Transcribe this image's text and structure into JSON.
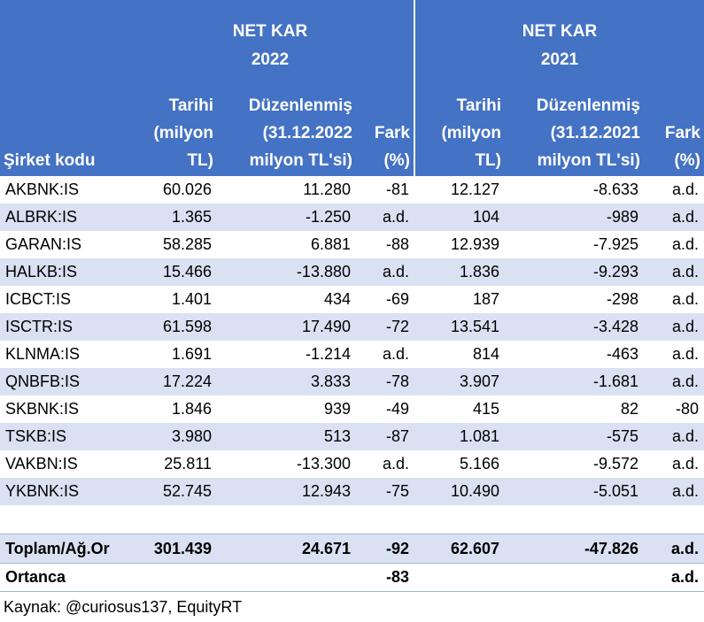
{
  "header": {
    "group_2022": {
      "line1": "NET KAR",
      "line2": "2022"
    },
    "group_2021": {
      "line1": "NET KAR",
      "line2": "2021"
    },
    "col_company": "Şirket kodu",
    "col_hist_1": "Tarihi",
    "col_hist_2": "(milyon",
    "col_hist_3": "TL)",
    "col_adj2022_1": "Düzenlenmiş",
    "col_adj2022_2": "(31.12.2022",
    "col_adj2022_3": "milyon TL'si)",
    "col_adj2021_1": "Düzenlenmiş",
    "col_adj2021_2": "(31.12.2021",
    "col_adj2021_3": "milyon TL'si)",
    "col_diff_1": "Fark",
    "col_diff_2": "(%)"
  },
  "rows": [
    {
      "code": "AKBNK:IS",
      "h22": "60.026",
      "a22": "11.280",
      "d22": "-81",
      "h21": "12.127",
      "a21": "-8.633",
      "d21": "a.d."
    },
    {
      "code": "ALBRK:IS",
      "h22": "1.365",
      "a22": "-1.250",
      "d22": "a.d.",
      "h21": "104",
      "a21": "-989",
      "d21": "a.d."
    },
    {
      "code": "GARAN:IS",
      "h22": "58.285",
      "a22": "6.881",
      "d22": "-88",
      "h21": "12.939",
      "a21": "-7.925",
      "d21": "a.d."
    },
    {
      "code": "HALKB:IS",
      "h22": "15.466",
      "a22": "-13.880",
      "d22": "a.d.",
      "h21": "1.836",
      "a21": "-9.293",
      "d21": "a.d."
    },
    {
      "code": "ICBCT:IS",
      "h22": "1.401",
      "a22": "434",
      "d22": "-69",
      "h21": "187",
      "a21": "-298",
      "d21": "a.d."
    },
    {
      "code": "ISCTR:IS",
      "h22": "61.598",
      "a22": "17.490",
      "d22": "-72",
      "h21": "13.541",
      "a21": "-3.428",
      "d21": "a.d."
    },
    {
      "code": "KLNMA:IS",
      "h22": "1.691",
      "a22": "-1.214",
      "d22": "a.d.",
      "h21": "814",
      "a21": "-463",
      "d21": "a.d."
    },
    {
      "code": "QNBFB:IS",
      "h22": "17.224",
      "a22": "3.833",
      "d22": "-78",
      "h21": "3.907",
      "a21": "-1.681",
      "d21": "a.d."
    },
    {
      "code": "SKBNK:IS",
      "h22": "1.846",
      "a22": "939",
      "d22": "-49",
      "h21": "415",
      "a21": "82",
      "d21": "-80"
    },
    {
      "code": "TSKB:IS",
      "h22": "3.980",
      "a22": "513",
      "d22": "-87",
      "h21": "1.081",
      "a21": "-575",
      "d21": "a.d."
    },
    {
      "code": "VAKBN:IS",
      "h22": "25.811",
      "a22": "-13.300",
      "d22": "a.d.",
      "h21": "5.166",
      "a21": "-9.572",
      "d21": "a.d."
    },
    {
      "code": "YKBNK:IS",
      "h22": "52.745",
      "a22": "12.943",
      "d22": "-75",
      "h21": "10.490",
      "a21": "-5.051",
      "d21": "a.d."
    }
  ],
  "total": {
    "label": "Toplam/Ağ.Or",
    "h22": "301.439",
    "a22": "24.671",
    "d22": "-92",
    "h21": "62.607",
    "a21": "-47.826",
    "d21": "a.d."
  },
  "median": {
    "label": "Ortanca",
    "d22": "-83",
    "d21": "a.d."
  },
  "source": "Kaynak: @curiosus137, EquityRT",
  "colors": {
    "header_bg": "#4472C4",
    "band": "#D9E1F2"
  }
}
